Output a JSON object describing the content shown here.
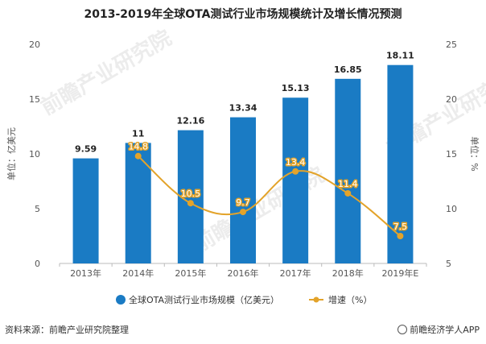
{
  "page": {
    "source_text": "资料来源：前瞻产业研究院整理",
    "brand_text": "前瞻经济学人APP",
    "watermark_text": "前瞻产业研究院"
  },
  "chart_data": {
    "type": "bar",
    "title": "2013-2019年全球OTA测试行业市场规模统计及增长情况预测",
    "categories": [
      "2013年",
      "2014年",
      "2015年",
      "2016年",
      "2017年",
      "2018年",
      "2019年E"
    ],
    "ylabel_left": "单位：亿美元",
    "ylabel_right": "单位：%",
    "ylim_left": [
      0,
      20
    ],
    "yticks_left": [
      0,
      5,
      10,
      15,
      20
    ],
    "ylim_right": [
      5,
      25
    ],
    "yticks_right": [
      5,
      10,
      15,
      20,
      25
    ],
    "grid": false,
    "legend_position": "bottom",
    "series": [
      {
        "name": "全球OTA测试行业市场规模（亿美元）",
        "type": "bar",
        "axis": "left",
        "color": "#1a7bc4",
        "values": [
          9.59,
          11,
          12.16,
          13.34,
          15.13,
          16.85,
          18.11
        ],
        "labels": [
          "9.59",
          "11",
          "12.16",
          "13.34",
          "15.13",
          "16.85",
          "18.11"
        ]
      },
      {
        "name": "增速（%）",
        "type": "line",
        "axis": "right",
        "color": "#e3a32a",
        "values": [
          null,
          14.8,
          10.5,
          9.7,
          13.4,
          11.4,
          7.5
        ],
        "labels": [
          "",
          "14.8",
          "10.5",
          "9.7",
          "13.4",
          "11.4",
          "7.5"
        ]
      }
    ]
  }
}
